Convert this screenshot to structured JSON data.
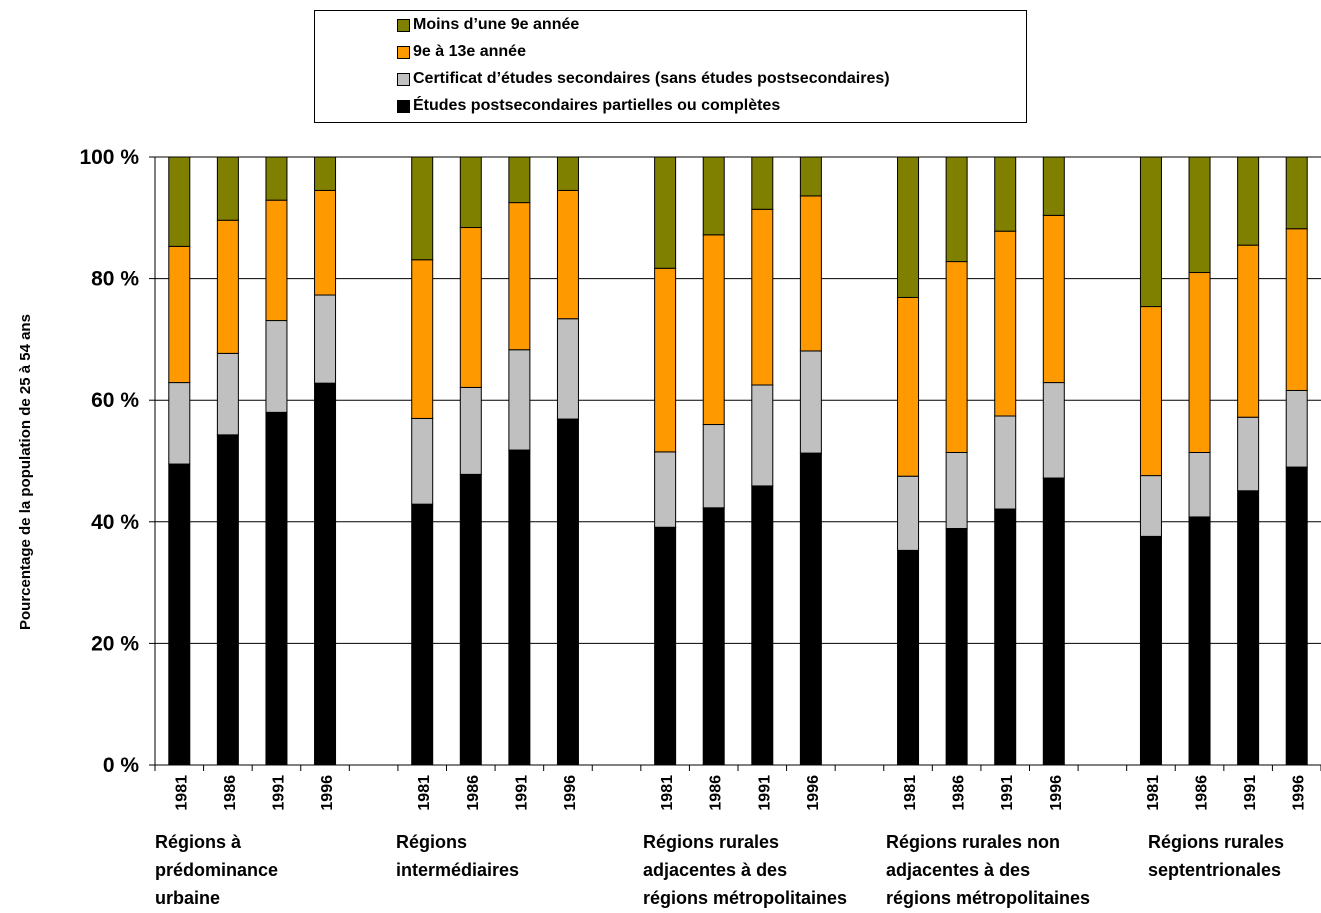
{
  "chart_data": {
    "type": "bar",
    "stacked": true,
    "ylabel": "Pourcentage de la population de 25 à 54 ans",
    "ylim": [
      0,
      100
    ],
    "yticks": [
      "0 %",
      "20 %",
      "40 %",
      "60 %",
      "80 %",
      "100 %"
    ],
    "grid": true,
    "legend_position": "top",
    "groups": [
      {
        "label": "Régions à\nprédominance\nurbaine",
        "categories": [
          "1981",
          "1986",
          "1991",
          "1996"
        ]
      },
      {
        "label": "Régions\nintermédiaires",
        "categories": [
          "1981",
          "1986",
          "1991",
          "1996"
        ]
      },
      {
        "label": "Régions rurales\nadjacentes à des\nrégions métropolitaines",
        "categories": [
          "1981",
          "1986",
          "1991",
          "1996"
        ]
      },
      {
        "label": "Régions rurales non\nadjacentes à des\nrégions métropolitaines",
        "categories": [
          "1981",
          "1986",
          "1991",
          "1996"
        ]
      },
      {
        "label": "Régions rurales\nseptentrionales",
        "categories": [
          "1981",
          "1986",
          "1991",
          "1996"
        ]
      }
    ],
    "series": [
      {
        "name": "Études postsecondaires partielles ou complètes",
        "color": "#000000",
        "values": [
          49.5,
          54.3,
          58.0,
          62.8,
          42.9,
          47.8,
          51.8,
          56.9,
          39.1,
          42.3,
          45.9,
          51.3,
          35.3,
          38.9,
          42.1,
          47.2,
          37.6,
          40.8,
          45.1,
          49.0
        ]
      },
      {
        "name": "Certificat d’études secondaires (sans études postsecondaires)",
        "color": "#c0c0c0",
        "values": [
          13.4,
          13.4,
          15.1,
          14.5,
          14.1,
          14.3,
          16.5,
          16.5,
          12.4,
          13.7,
          16.6,
          16.8,
          12.2,
          12.5,
          15.3,
          15.7,
          10.0,
          10.6,
          12.1,
          12.6
        ]
      },
      {
        "name": "9e à 13e année",
        "color": "#ff9900",
        "values": [
          22.4,
          21.9,
          19.8,
          17.2,
          26.1,
          26.3,
          24.2,
          21.1,
          30.2,
          31.2,
          28.9,
          25.5,
          29.4,
          31.4,
          30.4,
          27.5,
          27.8,
          29.6,
          28.3,
          26.6
        ]
      },
      {
        "name": "Moins d’une 9e année",
        "color": "#808000",
        "values": [
          14.7,
          10.4,
          7.1,
          5.5,
          16.9,
          11.6,
          7.5,
          5.5,
          18.3,
          12.8,
          8.6,
          6.4,
          23.1,
          17.2,
          12.2,
          9.6,
          24.6,
          19.0,
          14.5,
          11.8
        ]
      }
    ]
  }
}
